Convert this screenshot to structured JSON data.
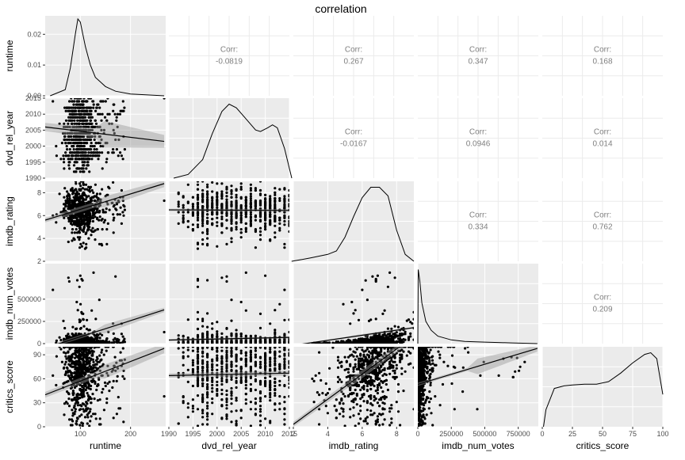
{
  "chart_data": {
    "type": "scatter-matrix",
    "title": "correlation",
    "variables": [
      "runtime",
      "dvd_rel_year",
      "imdb_rating",
      "imdb_num_votes",
      "critics_score"
    ],
    "ticks": {
      "runtime": [
        100,
        200
      ],
      "dvd_rel_year": [
        1990,
        1995,
        2000,
        2005,
        2010,
        2015
      ],
      "imdb_rating": [
        2,
        4,
        6,
        8
      ],
      "imdb_num_votes": [
        0,
        250000,
        500000,
        750000
      ],
      "critics_score": [
        0,
        25,
        50,
        75,
        100
      ]
    },
    "y_ticks": {
      "runtime_density": [
        "0.00",
        "0.01",
        "0.02"
      ],
      "dvd_rel_year": [
        1990,
        1995,
        2000,
        2005,
        2010,
        2015
      ],
      "imdb_rating": [
        2,
        4,
        6,
        8
      ],
      "imdb_num_votes": [
        0,
        250000,
        500000
      ],
      "critics_score": [
        0,
        30,
        60,
        90
      ]
    },
    "ranges": {
      "runtime": [
        30,
        270
      ],
      "dvd_rel_year": [
        1990,
        2015
      ],
      "imdb_rating": [
        2,
        9
      ],
      "imdb_num_votes": [
        0,
        900000
      ],
      "critics_score": [
        0,
        100
      ]
    },
    "y_density_range": [
      0,
      0.026
    ],
    "corr_label": "Corr:",
    "correlations": [
      {
        "row": 0,
        "col": 1,
        "value": "-0.0819"
      },
      {
        "row": 0,
        "col": 2,
        "value": "0.267"
      },
      {
        "row": 0,
        "col": 3,
        "value": "0.347"
      },
      {
        "row": 0,
        "col": 4,
        "value": "0.168"
      },
      {
        "row": 1,
        "col": 2,
        "value": "-0.0167"
      },
      {
        "row": 1,
        "col": 3,
        "value": "0.0946"
      },
      {
        "row": 1,
        "col": 4,
        "value": "0.014"
      },
      {
        "row": 2,
        "col": 3,
        "value": "0.334"
      },
      {
        "row": 2,
        "col": 4,
        "value": "0.762"
      },
      {
        "row": 3,
        "col": 4,
        "value": "0.209"
      }
    ],
    "densities": [
      {
        "var": "runtime",
        "x": [
          40,
          70,
          80,
          90,
          95,
          100,
          105,
          110,
          120,
          130,
          150,
          170,
          200,
          230,
          267
        ],
        "y": [
          0.0,
          0.002,
          0.009,
          0.02,
          0.025,
          0.024,
          0.02,
          0.016,
          0.01,
          0.006,
          0.003,
          0.0015,
          0.0006,
          0.0003,
          0.0
        ]
      },
      {
        "var": "dvd_rel_year",
        "x": [
          1991,
          1994,
          1997,
          1999,
          2001,
          2002.5,
          2004,
          2006,
          2008,
          2009,
          2010.5,
          2011.5,
          2012.5,
          2014,
          2015.5
        ],
        "y": [
          0.0,
          0.005,
          0.025,
          0.06,
          0.09,
          0.1,
          0.095,
          0.08,
          0.065,
          0.063,
          0.068,
          0.072,
          0.068,
          0.04,
          0.0
        ]
      },
      {
        "var": "imdb_rating",
        "x": [
          1.9,
          2.5,
          3,
          4,
          4.5,
          5,
          5.5,
          6,
          6.5,
          7,
          7.5,
          8,
          8.5,
          9
        ],
        "y": [
          0.0,
          0.01,
          0.02,
          0.04,
          0.06,
          0.14,
          0.26,
          0.37,
          0.43,
          0.43,
          0.38,
          0.18,
          0.04,
          0.0
        ]
      },
      {
        "var": "imdb_num_votes",
        "x": [
          180,
          3000,
          15000,
          30000,
          60000,
          100000,
          150000,
          250000,
          350000,
          500000,
          600000,
          700000,
          893000
        ],
        "y": [
          0.0,
          1.0,
          0.85,
          0.55,
          0.3,
          0.18,
          0.1,
          0.05,
          0.03,
          0.02,
          0.015,
          0.01,
          0.0
        ]
      },
      {
        "var": "critics_score",
        "x": [
          1,
          3,
          10,
          18,
          25,
          35,
          45,
          55,
          65,
          75,
          85,
          90,
          95,
          100
        ],
        "y": [
          0.0,
          0.2,
          0.45,
          0.48,
          0.49,
          0.5,
          0.5,
          0.53,
          0.63,
          0.75,
          0.85,
          0.87,
          0.8,
          0.38
        ]
      }
    ],
    "regressions": [
      {
        "row": 1,
        "col": 0,
        "x": [
          30,
          267
        ],
        "y": [
          2006.0,
          2001.5
        ],
        "band": [
          [
            1.5,
            5
          ],
          [
            1.0,
            2.0
          ]
        ]
      },
      {
        "row": 2,
        "col": 0,
        "x": [
          30,
          267
        ],
        "y": [
          5.6,
          8.8
        ],
        "band": [
          [
            0.25,
            0.55
          ],
          [
            0.12,
            0.3
          ]
        ]
      },
      {
        "row": 2,
        "col": 1,
        "x": [
          1990,
          2015
        ],
        "y": [
          6.5,
          6.45
        ],
        "band": [
          [
            0.12,
            0.12
          ],
          [
            0.08,
            0.12
          ]
        ]
      },
      {
        "row": 3,
        "col": 0,
        "x": [
          30,
          267
        ],
        "y": [
          -50000,
          380000
        ],
        "band": [
          [
            20000,
            60000
          ],
          [
            10000,
            25000
          ]
        ]
      },
      {
        "row": 3,
        "col": 1,
        "x": [
          1990,
          2015
        ],
        "y": [
          40000,
          70000
        ],
        "band": [
          [
            12000,
            12000
          ],
          [
            8000,
            12000
          ]
        ]
      },
      {
        "row": 3,
        "col": 2,
        "x": [
          2,
          9
        ],
        "y": [
          -20000,
          180000
        ],
        "band": [
          [
            8000,
            15000
          ],
          [
            6000,
            10000
          ]
        ]
      },
      {
        "row": 4,
        "col": 0,
        "x": [
          30,
          267
        ],
        "y": [
          40,
          98
        ],
        "band": [
          [
            4,
            10
          ],
          [
            3,
            6
          ]
        ]
      },
      {
        "row": 4,
        "col": 1,
        "x": [
          1990,
          2015
        ],
        "y": [
          64,
          67
        ],
        "band": [
          [
            3,
            3
          ],
          [
            2,
            3
          ]
        ]
      },
      {
        "row": 4,
        "col": 2,
        "x": [
          2,
          9
        ],
        "y": [
          3,
          113
        ],
        "band": [
          [
            4,
            6
          ],
          [
            2,
            4
          ]
        ]
      },
      {
        "row": 4,
        "col": 3,
        "x": [
          0,
          893000
        ],
        "y": [
          53,
          98
        ],
        "band": [
          [
            2,
            12
          ],
          [
            2,
            4
          ]
        ]
      }
    ],
    "grid": true,
    "n_points_approx": 650
  }
}
